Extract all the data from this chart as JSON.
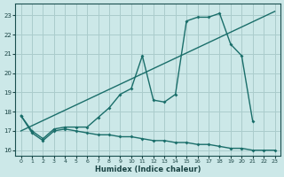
{
  "xlabel": "Humidex (Indice chaleur)",
  "bg_color": "#cce8e8",
  "grid_color": "#aacccc",
  "line_color": "#1a6e6a",
  "line_diag": {
    "x": [
      0,
      23
    ],
    "y": [
      17.0,
      23.2
    ]
  },
  "line_curve": {
    "x": [
      0,
      1,
      2,
      3,
      4,
      5,
      6,
      7,
      8,
      9,
      10,
      11,
      12,
      13,
      14,
      15,
      16,
      17,
      18,
      19,
      20,
      21
    ],
    "y": [
      17.8,
      17.0,
      16.6,
      17.1,
      17.2,
      17.2,
      17.2,
      17.7,
      18.2,
      18.9,
      19.2,
      20.9,
      18.6,
      18.5,
      18.9,
      22.7,
      22.9,
      22.9,
      23.1,
      21.5,
      20.9,
      17.5
    ]
  },
  "line_flat": {
    "x": [
      0,
      1,
      2,
      3,
      4,
      5,
      6,
      7,
      8,
      9,
      10,
      11,
      12,
      13,
      14,
      15,
      16,
      17,
      18,
      19,
      20,
      21,
      22,
      23
    ],
    "y": [
      17.8,
      16.9,
      16.5,
      17.0,
      17.1,
      17.0,
      16.9,
      16.8,
      16.8,
      16.7,
      16.7,
      16.6,
      16.5,
      16.5,
      16.4,
      16.4,
      16.3,
      16.3,
      16.2,
      16.1,
      16.1,
      16.0,
      16.0,
      16.0
    ]
  },
  "ylim": [
    15.7,
    23.6
  ],
  "xlim": [
    -0.5,
    23.5
  ],
  "yticks": [
    16,
    17,
    18,
    19,
    20,
    21,
    22,
    23
  ],
  "xticks": [
    0,
    1,
    2,
    3,
    4,
    5,
    6,
    7,
    8,
    9,
    10,
    11,
    12,
    13,
    14,
    15,
    16,
    17,
    18,
    19,
    20,
    21,
    22,
    23
  ]
}
